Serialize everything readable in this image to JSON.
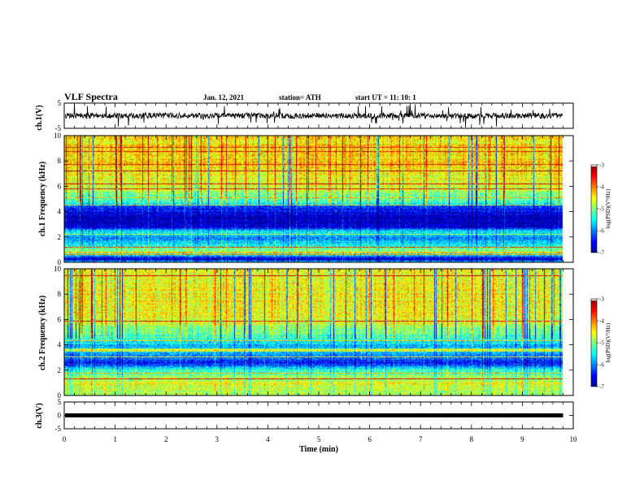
{
  "header": {
    "title": "VLF Spectra",
    "date": "Jan. 12, 2021",
    "station": "station= ATH",
    "start": "start UT = 11: 10: 1"
  },
  "chart_data": [
    {
      "type": "line",
      "panel": "ch1-waveform",
      "ylabel": "ch.1(V)",
      "ylim": [
        -5,
        5
      ],
      "yticks": [
        "5",
        "-5"
      ],
      "xlim": [
        0,
        10
      ],
      "trace_color": "#000000",
      "signal_range_to_min": 9.8,
      "mean": 0,
      "noise_amplitude": 1.6
    },
    {
      "type": "heatmap",
      "panel": "ch1-spectrogram",
      "ylabel": "ch.1 Frequency (kHz)",
      "ylim": [
        0,
        10
      ],
      "yticks": [
        "0",
        "2",
        "4",
        "6",
        "8",
        "10"
      ],
      "xlim": [
        0,
        10
      ],
      "data_until_min": 9.8,
      "colorbar": {
        "label": "log(PSD)(V²/Hz)",
        "range": [
          -7,
          -3
        ],
        "ticks": [
          "-3",
          "-4",
          "-5",
          "-6",
          "-7"
        ],
        "colors": [
          "#00008f",
          "#0000ff",
          "#0080ff",
          "#00ffff",
          "#80ff80",
          "#ffff00",
          "#ff8000",
          "#ff0000",
          "#800000",
          "#ffffff"
        ]
      },
      "level_profile_kHz": [
        [
          0,
          -5.2
        ],
        [
          0.3,
          -6.8
        ],
        [
          0.6,
          -5.5
        ],
        [
          1.0,
          -4.9
        ],
        [
          1.5,
          -5.6
        ],
        [
          2.0,
          -6.0
        ],
        [
          2.4,
          -5.4
        ],
        [
          2.8,
          -6.6
        ],
        [
          3.5,
          -6.9
        ],
        [
          4.4,
          -6.3
        ],
        [
          4.8,
          -5.3
        ],
        [
          6.0,
          -4.6
        ],
        [
          8.0,
          -4.3
        ],
        [
          10.0,
          -4.4
        ]
      ]
    },
    {
      "type": "heatmap",
      "panel": "ch2-spectrogram",
      "ylabel": "ch.2 Frequency (kHz)",
      "ylim": [
        0,
        10
      ],
      "yticks": [
        "0",
        "2",
        "4",
        "6",
        "8",
        "10"
      ],
      "xlim": [
        0,
        10
      ],
      "data_until_min": 9.8,
      "colorbar": {
        "label": "log(PSD)(V²/Hz)",
        "range": [
          -7,
          -3
        ],
        "ticks": [
          "-3",
          "-4",
          "-5",
          "-6",
          "-7"
        ],
        "colors": [
          "#00008f",
          "#0000ff",
          "#0080ff",
          "#00ffff",
          "#80ff80",
          "#ffff00",
          "#ff8000",
          "#ff0000",
          "#800000",
          "#ffffff"
        ]
      },
      "level_profile_kHz": [
        [
          0,
          -5.0
        ],
        [
          0.5,
          -4.7
        ],
        [
          1.0,
          -4.6
        ],
        [
          1.5,
          -4.9
        ],
        [
          2.0,
          -5.3
        ],
        [
          2.6,
          -6.5
        ],
        [
          3.2,
          -5.9
        ],
        [
          4.0,
          -5.7
        ],
        [
          4.6,
          -5.3
        ],
        [
          6.0,
          -4.6
        ],
        [
          8.0,
          -4.5
        ],
        [
          10.0,
          -4.6
        ]
      ]
    },
    {
      "type": "line",
      "panel": "ch3-waveform",
      "ylabel": "ch.3(V)",
      "ylim": [
        -5,
        5
      ],
      "yticks": [
        "5",
        "0",
        "-5"
      ],
      "xlim": [
        0,
        10
      ],
      "trace_color": "#000000",
      "signal_range_to_min": 9.8,
      "mean": 0,
      "noise_amplitude": 0.3
    }
  ],
  "x_axis": {
    "label": "Time (min)",
    "ticks": [
      "0",
      "1",
      "2",
      "3",
      "4",
      "5",
      "6",
      "7",
      "8",
      "9",
      "10"
    ]
  }
}
